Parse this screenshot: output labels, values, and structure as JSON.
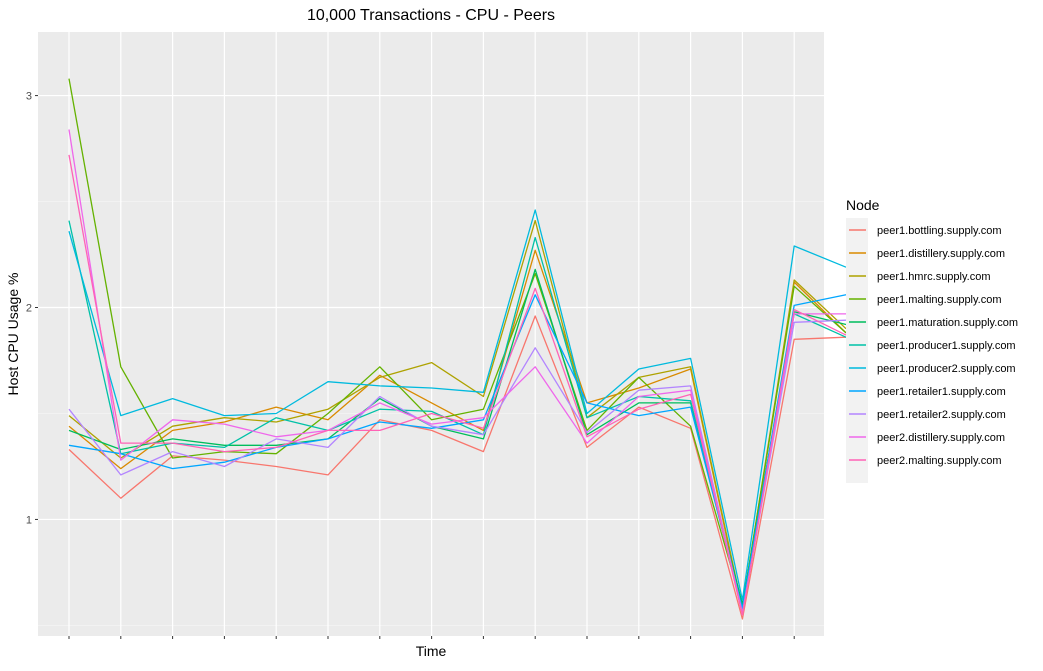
{
  "chart_data": {
    "type": "line",
    "title": "10,000 Transactions - CPU - Peers",
    "xlabel": "Time",
    "ylabel": "Host CPU Usage %",
    "x_ticks": 15,
    "ylim": [
      0.45,
      3.3
    ],
    "y_ticks": [
      1,
      2,
      3
    ],
    "grid": true,
    "legend": {
      "title": "Node",
      "placement": "right"
    },
    "series": [
      {
        "name": "peer1.bottling.supply.com",
        "color": "#F8766D",
        "values": [
          1.33,
          1.1,
          1.3,
          1.28,
          1.25,
          1.21,
          1.47,
          1.42,
          1.32,
          1.96,
          1.34,
          1.53,
          1.43,
          0.53,
          1.85,
          1.86
        ]
      },
      {
        "name": "peer1.distillery.supply.com",
        "color": "#D98A00",
        "values": [
          1.44,
          1.24,
          1.42,
          1.46,
          1.53,
          1.47,
          1.68,
          1.55,
          1.42,
          2.27,
          1.55,
          1.62,
          1.71,
          0.57,
          2.12,
          1.88
        ]
      },
      {
        "name": "peer1.hmrc.supply.com",
        "color": "#AEA200",
        "values": [
          1.49,
          1.29,
          1.44,
          1.48,
          1.46,
          1.52,
          1.67,
          1.74,
          1.58,
          2.41,
          1.48,
          1.67,
          1.72,
          0.58,
          2.13,
          1.9
        ]
      },
      {
        "name": "peer1.malting.supply.com",
        "color": "#64B200",
        "values": [
          3.08,
          1.72,
          1.29,
          1.32,
          1.31,
          1.5,
          1.72,
          1.47,
          1.52,
          2.16,
          1.42,
          1.67,
          1.44,
          0.59,
          2.1,
          1.88
        ]
      },
      {
        "name": "peer1.maturation.supply.com",
        "color": "#00BD5C",
        "values": [
          1.42,
          1.33,
          1.38,
          1.35,
          1.35,
          1.38,
          1.57,
          1.44,
          1.38,
          2.18,
          1.4,
          1.55,
          1.55,
          0.6,
          1.98,
          1.92
        ]
      },
      {
        "name": "peer1.producer1.supply.com",
        "color": "#00C1A7",
        "values": [
          2.41,
          1.31,
          1.36,
          1.34,
          1.48,
          1.42,
          1.52,
          1.51,
          1.4,
          2.33,
          1.48,
          1.58,
          1.56,
          0.57,
          1.97,
          1.86
        ]
      },
      {
        "name": "peer1.producer2.supply.com",
        "color": "#00BADE",
        "values": [
          2.36,
          1.49,
          1.57,
          1.49,
          1.5,
          1.65,
          1.63,
          1.62,
          1.6,
          2.46,
          1.5,
          1.71,
          1.76,
          0.62,
          2.29,
          2.19
        ]
      },
      {
        "name": "peer1.retailer1.supply.com",
        "color": "#00A6FF",
        "values": [
          1.35,
          1.31,
          1.24,
          1.27,
          1.34,
          1.38,
          1.46,
          1.43,
          1.47,
          2.06,
          1.55,
          1.49,
          1.53,
          0.58,
          2.01,
          2.06
        ]
      },
      {
        "name": "peer1.retailer2.supply.com",
        "color": "#B385FF",
        "values": [
          1.52,
          1.21,
          1.32,
          1.25,
          1.38,
          1.34,
          1.58,
          1.44,
          1.4,
          1.81,
          1.41,
          1.61,
          1.63,
          0.56,
          1.93,
          1.94
        ]
      },
      {
        "name": "peer2.distillery.supply.com",
        "color": "#EF67EB",
        "values": [
          2.84,
          1.28,
          1.47,
          1.45,
          1.39,
          1.42,
          1.55,
          1.45,
          1.48,
          1.72,
          1.36,
          1.58,
          1.61,
          0.55,
          1.97,
          1.97
        ]
      },
      {
        "name": "peer2.malting.supply.com",
        "color": "#FF63B6",
        "values": [
          2.72,
          1.36,
          1.36,
          1.32,
          1.34,
          1.42,
          1.42,
          1.5,
          1.43,
          2.09,
          1.39,
          1.52,
          1.59,
          0.55,
          1.99,
          1.87
        ]
      }
    ]
  }
}
